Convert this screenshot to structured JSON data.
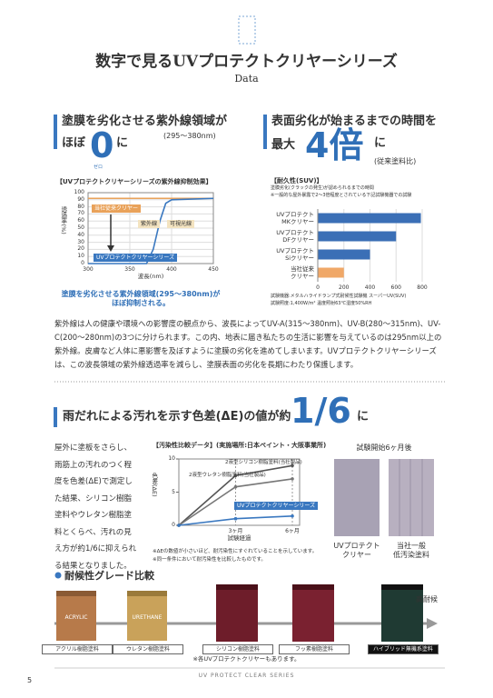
{
  "header": {
    "title": "数字で見るUVプロテクトクリヤーシリーズ",
    "subtitle": "Data"
  },
  "uv_section": {
    "heading": "塗膜を劣化させる紫外線領域が",
    "prefix": "ほぼ",
    "figure": "0",
    "ruby": "ゼロ",
    "suffix": "に",
    "range": "(295〜380nm)",
    "caption": "塗膜を劣化させる紫外線領域(295〜380nm)が\nほぼ抑制される。"
  },
  "suv_section": {
    "heading": "表面劣化が始まるまでの時間を",
    "prefix": "最大",
    "figure": "4倍",
    "suffix": "に",
    "note": "(従来塗料比)"
  },
  "body_text": "紫外線は人の健康や環境への影響度の観点から、波長によってUV-A(315〜380nm)、UV-B(280〜315nm)、UV-C(200〜280nm)の3つに分けられます。この内、地表に届き私たちの生活に影響を与えているのは295nm以上の紫外線。皮膚など人体に悪影響を及ぼすように塗膜の劣化を進めてしまいます。UVプロテクトクリヤーシリーズは、この波長領域の紫外線透過率を減らし、塗膜表面の劣化を長期にわたり保護します。",
  "stain_section": {
    "heading": "雨だれによる汚れを示す色差(ΔE)の値が約",
    "figure": "1/6",
    "suffix": "に",
    "text": "屋外に塗板をさらし、雨筋上の汚れのつく程度を色差(ΔE)で測定した結果、シリコン樹脂塗料やウレタン樹脂塗料とくらべ、汚れの見え方が約1/6に抑えられる結果となりました。",
    "photo_title": "試験開始6ヶ月後",
    "photos": [
      "UVプロテクト\nクリヤー",
      "当社一般\n低汚染塗料"
    ]
  },
  "grade_section": {
    "heading": "耐候性グレード比較",
    "high": "高耐候",
    "can_labels": [
      "ACRYLIC",
      "URETHANE"
    ],
    "grades": [
      "アクリル樹脂塗料",
      "ウレタン樹脂塗料",
      "シリコン樹脂塗料",
      "フッ素樹脂塗料",
      "ハイブリッド無機系塗料"
    ],
    "note": "※各UVプロテクトクリヤーもあります。"
  },
  "footer": {
    "series": "UV PROTECT CLEAR SERIES",
    "page": "5"
  },
  "chart_data": [
    {
      "type": "line",
      "title": "【UVプロテクトクリヤーシリーズの紫外線抑制効果】",
      "xlabel": "波長(nm)",
      "ylabel": "透過率(%)",
      "xlim": [
        300,
        450
      ],
      "xticks": [
        300,
        350,
        400,
        450
      ],
      "ylim": [
        0,
        100
      ],
      "yticks": [
        0,
        10,
        20,
        30,
        40,
        50,
        60,
        70,
        80,
        90,
        100
      ],
      "grid": true,
      "annotations": [
        "紫外線",
        "可視光線"
      ],
      "series": [
        {
          "name": "当社従来クリヤー",
          "color": "#e9a25a",
          "x": [
            300,
            450
          ],
          "values": [
            92,
            92
          ]
        },
        {
          "name": "UVプロテクトクリヤーシリーズ",
          "color": "#3a78c0",
          "x": [
            300,
            370,
            378,
            386,
            393,
            400,
            450
          ],
          "values": [
            0,
            0,
            20,
            60,
            85,
            90,
            92
          ]
        }
      ]
    },
    {
      "type": "bar",
      "orientation": "horizontal",
      "title": "【耐久性(SUV)】",
      "notes": [
        "塗膜劣化(クラックの発生)が認められるまでの時間",
        "※一般的な屋外暴露で2〜3倍程度とされている下記試験機器での試験"
      ],
      "categories": [
        "UVプロテクト\nMKクリヤー",
        "UVプロテクト\nDFクリヤー",
        "UVプロテクト\nSiクリヤー",
        "当社従来\nクリヤー"
      ],
      "values": [
        790,
        600,
        400,
        200
      ],
      "colors": [
        "#3b6fb6",
        "#3b6fb6",
        "#3b6fb6",
        "#f0a868"
      ],
      "xlim": [
        0,
        800
      ],
      "xticks": [
        0,
        200,
        400,
        600,
        800
      ],
      "grid": true,
      "footnotes": [
        "試験機器:メタルハライドランプ式耐候性試験機 スーパーUV(SUV)",
        "試験照度:1,400W/m²  温度照射63℃湿度50%RH"
      ]
    },
    {
      "type": "line",
      "title": "【汚染性比較データ】(実施場所:日本ペイント・大阪事業所)",
      "xlabel": "試験経過",
      "ylabel": "色差(ΔE)",
      "categories": [
        null,
        "3ヶ月",
        "6ヶ月"
      ],
      "ylim": [
        0,
        10
      ],
      "yticks": [
        0,
        5,
        10
      ],
      "series": [
        {
          "name": "2液型シリコン樹脂塗料(当社製品)",
          "color": "#555555",
          "values": [
            0,
            7.5,
            9
          ]
        },
        {
          "name": "2液型ウレタン樹脂塗料(当社製品)",
          "color": "#777777",
          "values": [
            0,
            5.8,
            7
          ]
        },
        {
          "name": "UVプロテクトクリヤーシリーズ",
          "color": "#3a78c0",
          "values": [
            0,
            1,
            1.4
          ]
        }
      ],
      "notes": [
        "※ΔEの数値が小さいほど、耐汚染性にすぐれていることを示しています。",
        "※同一条件において耐汚染性を比較したものです。"
      ]
    }
  ]
}
